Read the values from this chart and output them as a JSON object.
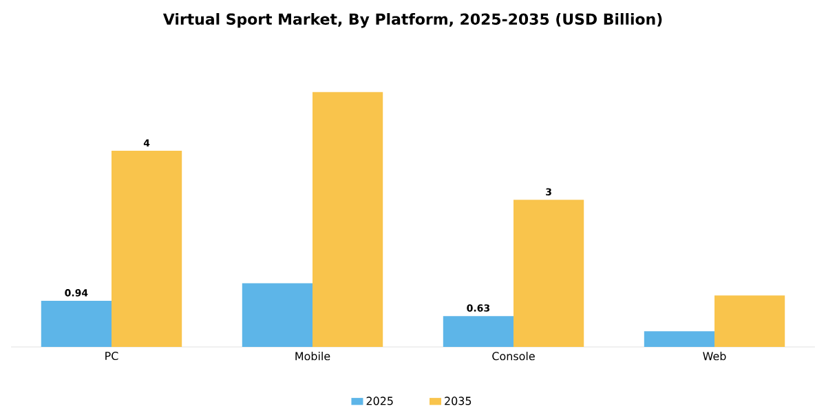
{
  "chart_data": {
    "type": "bar",
    "title": "Virtual Sport Market, By Platform, 2025-2035 (USD Billion)",
    "categories": [
      "PC",
      "Mobile",
      "Console",
      "Web"
    ],
    "series": [
      {
        "name": "2025",
        "color": "#5db5e8",
        "values": [
          0.94,
          1.3,
          0.63,
          0.32
        ],
        "value_labels": [
          "0.94",
          null,
          "0.63",
          null
        ]
      },
      {
        "name": "2035",
        "color": "#f9c44c",
        "values": [
          4,
          5.2,
          3,
          1.05
        ],
        "value_labels": [
          "4",
          null,
          "3",
          null
        ]
      }
    ],
    "legend": "bottom"
  }
}
